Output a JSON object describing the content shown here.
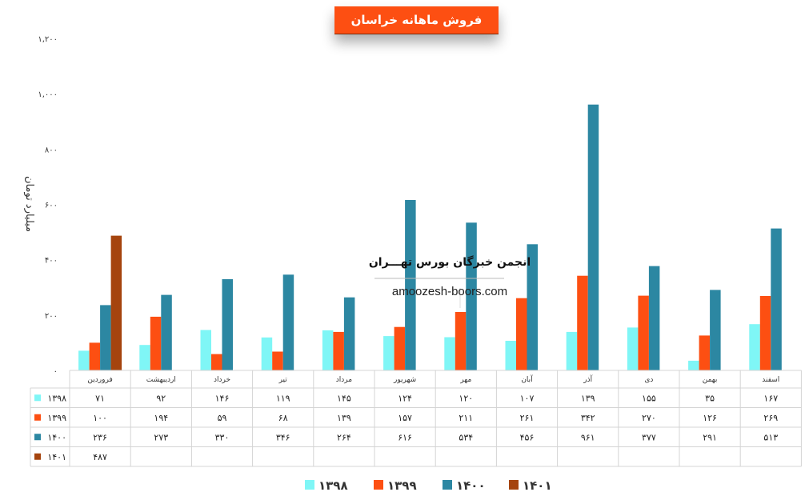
{
  "chart_data": {
    "type": "bar",
    "title": "فروش ماهانه خراسان",
    "ylabel": "میلیارد تومان",
    "ylim": [
      0,
      1200
    ],
    "yticks": [
      "۰",
      "۲۰۰",
      "۴۰۰",
      "۶۰۰",
      "۸۰۰",
      "۱,۰۰۰",
      "۱,۲۰۰"
    ],
    "ytick_values": [
      0,
      200,
      400,
      600,
      800,
      1000,
      1200
    ],
    "grid": false,
    "legend_position": "bottom",
    "categories": [
      "فروردین",
      "اردیبهشت",
      "خرداد",
      "تیر",
      "مرداد",
      "شهریور",
      "مهر",
      "آبان",
      "آذر",
      "دی",
      "بهمن",
      "اسفند"
    ],
    "series": [
      {
        "name": "۱۳۹۸",
        "color": "#7ff6f6",
        "values": [
          71,
          92,
          146,
          119,
          145,
          124,
          120,
          107,
          139,
          155,
          35,
          167
        ],
        "labels": [
          "۷۱",
          "۹۲",
          "۱۴۶",
          "۱۱۹",
          "۱۴۵",
          "۱۲۴",
          "۱۲۰",
          "۱۰۷",
          "۱۳۹",
          "۱۵۵",
          "۳۵",
          "۱۶۷"
        ]
      },
      {
        "name": "۱۳۹۹",
        "color": "#fd4f12",
        "values": [
          100,
          194,
          59,
          68,
          139,
          157,
          211,
          261,
          342,
          270,
          126,
          269
        ],
        "labels": [
          "۱۰۰",
          "۱۹۴",
          "۵۹",
          "۶۸",
          "۱۳۹",
          "۱۵۷",
          "۲۱۱",
          "۲۶۱",
          "۳۴۲",
          "۲۷۰",
          "۱۲۶",
          "۲۶۹"
        ]
      },
      {
        "name": "۱۴۰۰",
        "color": "#2c87a2",
        "values": [
          236,
          273,
          330,
          346,
          264,
          616,
          534,
          456,
          961,
          377,
          291,
          513
        ],
        "labels": [
          "۲۳۶",
          "۲۷۳",
          "۳۳۰",
          "۳۴۶",
          "۲۶۴",
          "۶۱۶",
          "۵۳۴",
          "۴۵۶",
          "۹۶۱",
          "۳۷۷",
          "۲۹۱",
          "۵۱۳"
        ]
      },
      {
        "name": "۱۴۰۱",
        "color": "#a5440e",
        "values": [
          487,
          null,
          null,
          null,
          null,
          null,
          null,
          null,
          null,
          null,
          null,
          null
        ],
        "labels": [
          "۴۸۷",
          "",
          "",
          "",
          "",
          "",
          "",
          "",
          "",
          "",
          "",
          ""
        ]
      }
    ]
  },
  "watermark": {
    "title": "انجمن خبرگان بورس تهـــران",
    "url": "amoozesh-boors.com"
  }
}
